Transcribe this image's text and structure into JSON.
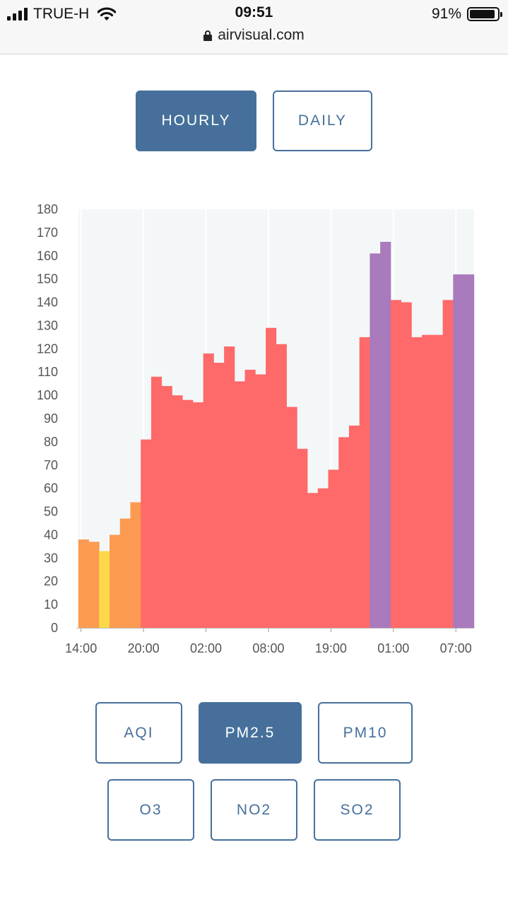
{
  "status": {
    "carrier": "TRUE-H",
    "time": "09:51",
    "battery": "91%",
    "battery_level": 0.91,
    "url": "airvisual.com"
  },
  "range_tabs": [
    {
      "label": "HOURLY",
      "active": true
    },
    {
      "label": "DAILY",
      "active": false
    }
  ],
  "pollutants": [
    {
      "label": "AQI",
      "active": false
    },
    {
      "label": "PM2.5",
      "active": true
    },
    {
      "label": "PM10",
      "active": false
    },
    {
      "label": "O3",
      "active": false
    },
    {
      "label": "NO2",
      "active": false
    },
    {
      "label": "SO2",
      "active": false
    }
  ],
  "colors": {
    "accent": "#46709b",
    "yellow": "#fcd94a",
    "orange": "#fd9a52",
    "red": "#fe6a69",
    "purple": "#a97abc",
    "plot_bg": "#f4f7f8"
  },
  "chart_data": {
    "type": "bar",
    "title": "",
    "xlabel": "",
    "ylabel": "",
    "ylim": [
      0,
      180
    ],
    "yticks": [
      0,
      10,
      20,
      30,
      40,
      50,
      60,
      70,
      80,
      90,
      100,
      110,
      120,
      130,
      140,
      150,
      160,
      170,
      180
    ],
    "xtick_labels": [
      "14:00",
      "20:00",
      "02:00",
      "08:00",
      "19:00",
      "01:00",
      "07:00"
    ],
    "xtick_bar_index": [
      0,
      6,
      12,
      18,
      24,
      30,
      36
    ],
    "grid": true,
    "values": [
      38,
      37,
      33,
      40,
      47,
      54,
      81,
      108,
      104,
      100,
      98,
      97,
      118,
      114,
      121,
      106,
      111,
      109,
      129,
      122,
      95,
      77,
      58,
      60,
      68,
      82,
      87,
      125,
      161,
      166,
      141,
      140,
      125,
      126,
      126,
      141,
      152,
      152
    ],
    "colors": [
      "orange",
      "orange",
      "yellow",
      "orange",
      "orange",
      "orange",
      "red",
      "red",
      "red",
      "red",
      "red",
      "red",
      "red",
      "red",
      "red",
      "red",
      "red",
      "red",
      "red",
      "red",
      "red",
      "red",
      "red",
      "red",
      "red",
      "red",
      "red",
      "red",
      "purple",
      "purple",
      "red",
      "red",
      "red",
      "red",
      "red",
      "red",
      "purple",
      "purple"
    ]
  }
}
